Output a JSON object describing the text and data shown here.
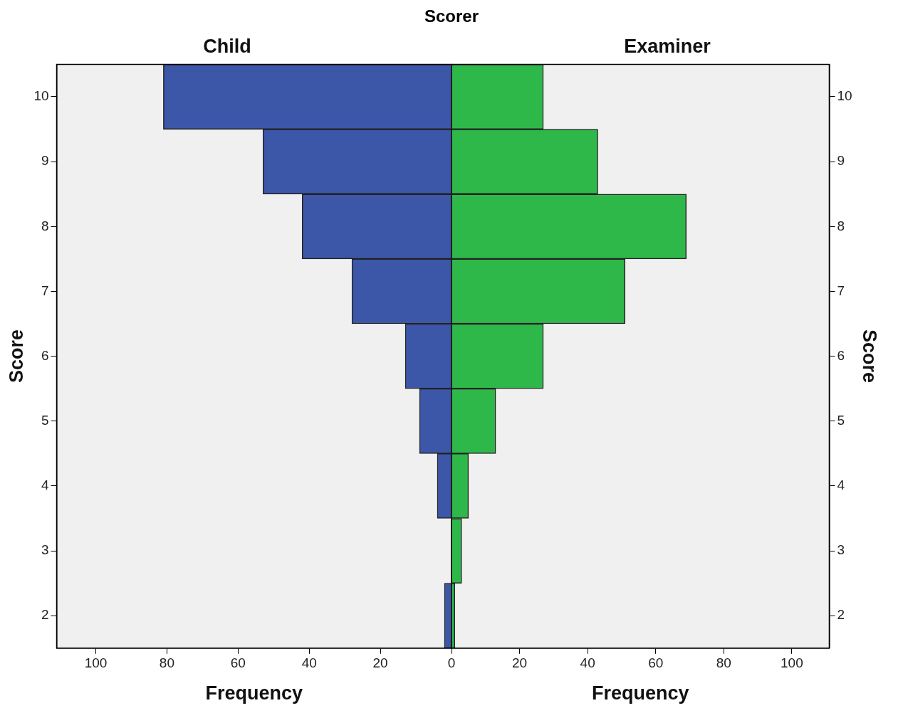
{
  "chart_data": [
    {
      "type": "bar",
      "orientation": "horizontal",
      "title": "Child",
      "annotations": [
        "Scorer"
      ],
      "xlabel": "Frequency",
      "ylabel": "Score",
      "categories": [
        "10",
        "9",
        "8",
        "7",
        "6",
        "5",
        "4",
        "3",
        "2"
      ],
      "series": [
        {
          "color": "#3c56a8",
          "values": [
            81,
            53,
            42,
            28,
            13,
            9,
            4,
            0,
            2
          ]
        }
      ],
      "xlim": [
        111,
        0
      ],
      "xticks": [
        {
          "value": 0,
          "label": null
        },
        20,
        40,
        60,
        80,
        100
      ]
    },
    {
      "type": "bar",
      "orientation": "horizontal",
      "title": "Examiner",
      "xlabel": "Frequency",
      "ylabel": "Score",
      "categories": [
        "10",
        "9",
        "8",
        "7",
        "6",
        "5",
        "4",
        "3",
        "2"
      ],
      "series": [
        {
          "color": "#2fb84a",
          "values": [
            27,
            43,
            69,
            51,
            27,
            13,
            5,
            3,
            1
          ]
        }
      ],
      "xlim": [
        0,
        111
      ],
      "xticks": [
        0,
        20,
        40,
        60,
        80,
        100
      ]
    }
  ]
}
